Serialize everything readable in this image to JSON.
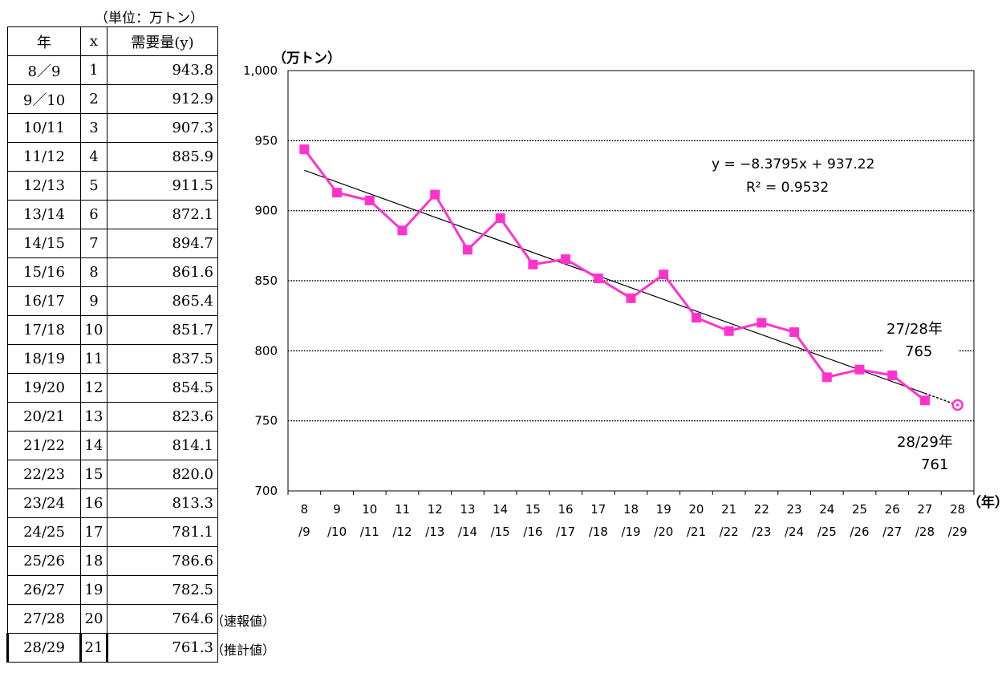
{
  "table": {
    "unit_note": "（単位：万トン）",
    "headers": [
      "年",
      "x",
      "需要量(y)"
    ],
    "rows": [
      {
        "year": "8／9",
        "x": "1",
        "y": "943.8"
      },
      {
        "year": "9／10",
        "x": "2",
        "y": "912.9"
      },
      {
        "year": "10/11",
        "x": "3",
        "y": "907.3"
      },
      {
        "year": "11/12",
        "x": "4",
        "y": "885.9"
      },
      {
        "year": "12/13",
        "x": "5",
        "y": "911.5"
      },
      {
        "year": "13/14",
        "x": "6",
        "y": "872.1"
      },
      {
        "year": "14/15",
        "x": "7",
        "y": "894.7"
      },
      {
        "year": "15/16",
        "x": "8",
        "y": "861.6"
      },
      {
        "year": "16/17",
        "x": "9",
        "y": "865.4"
      },
      {
        "year": "17/18",
        "x": "10",
        "y": "851.7"
      },
      {
        "year": "18/19",
        "x": "11",
        "y": "837.5"
      },
      {
        "year": "19/20",
        "x": "12",
        "y": "854.5"
      },
      {
        "year": "20/21",
        "x": "13",
        "y": "823.6"
      },
      {
        "year": "21/22",
        "x": "14",
        "y": "814.1"
      },
      {
        "year": "22/23",
        "x": "15",
        "y": "820.0"
      },
      {
        "year": "23/24",
        "x": "16",
        "y": "813.3"
      },
      {
        "year": "24/25",
        "x": "17",
        "y": "781.1"
      },
      {
        "year": "25/26",
        "x": "18",
        "y": "786.6"
      },
      {
        "year": "26/27",
        "x": "19",
        "y": "782.5"
      },
      {
        "year": "27/28",
        "x": "20",
        "y": "764.6",
        "note": "（速報値）"
      },
      {
        "year": "28/29",
        "x": "21",
        "y": "761.3",
        "note": "（推計値）"
      }
    ]
  },
  "chart_data": {
    "type": "line",
    "y_unit_label": "（万トン）",
    "x_unit_label": "（年）",
    "ylim": [
      700,
      1000
    ],
    "y_ticks": [
      "1,000",
      "950",
      "900",
      "850",
      "800",
      "750",
      "700"
    ],
    "y_tick_values": [
      1000,
      950,
      900,
      850,
      800,
      750,
      700
    ],
    "grid": true,
    "categories_top": [
      "8",
      "9",
      "10",
      "11",
      "12",
      "13",
      "14",
      "15",
      "16",
      "17",
      "18",
      "19",
      "20",
      "21",
      "22",
      "23",
      "24",
      "25",
      "26",
      "27",
      "28"
    ],
    "categories_bottom": [
      "/9",
      "/10",
      "/11",
      "/12",
      "/13",
      "/14",
      "/15",
      "/16",
      "/17",
      "/18",
      "/19",
      "/20",
      "/21",
      "/22",
      "/23",
      "/24",
      "/25",
      "/26",
      "/27",
      "/28",
      "/29"
    ],
    "series": [
      {
        "values": [
          943.8,
          912.9,
          907.3,
          885.9,
          911.5,
          872.1,
          894.7,
          861.6,
          865.4,
          851.7,
          837.5,
          854.5,
          823.6,
          814.1,
          820.0,
          813.3,
          781.1,
          786.6,
          782.5,
          764.6
        ],
        "color": "#ff33cc"
      }
    ],
    "estimate_point": {
      "x": 21,
      "value": 761.3,
      "color": "#ff33cc"
    },
    "trendline": {
      "slope": -8.3795,
      "intercept": 937.22,
      "color": "#000000"
    },
    "equation_text": "y = −8.3795x + 937.22",
    "r2_text": "R² = 0.9532",
    "annotations": [
      {
        "line1": "27/28年",
        "line2": "765"
      },
      {
        "line1": "28/29年",
        "line2": "761"
      }
    ]
  }
}
